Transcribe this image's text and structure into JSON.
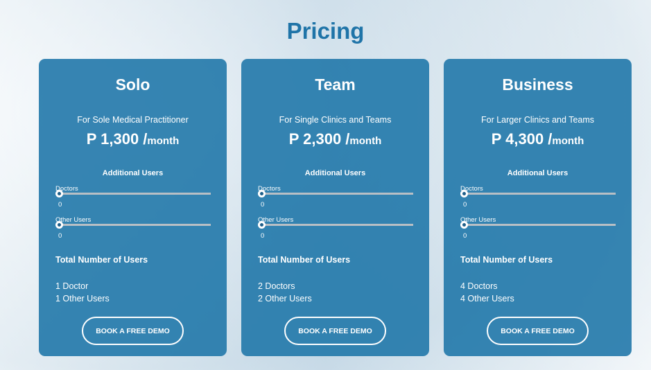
{
  "title": "Pricing",
  "plans": [
    {
      "name": "Solo",
      "subtitle": "For Sole Medical Practitioner",
      "price": "P 1,300 /",
      "period": "month",
      "additional": "Additional Users",
      "doctors_label": "Doctors",
      "doctors_value": "0",
      "others_label": "Other Users",
      "others_value": "0",
      "total_label": "Total Number of Users",
      "total_doctors": "1 Doctor",
      "total_others": "1 Other Users",
      "button": "Book a Free Demo"
    },
    {
      "name": "Team",
      "subtitle": "For Single Clinics and Teams",
      "price": "P 2,300 /",
      "period": "month",
      "additional": "Additional Users",
      "doctors_label": "Doctors",
      "doctors_value": "0",
      "others_label": "Other Users",
      "others_value": "0",
      "total_label": "Total Number of Users",
      "total_doctors": "2 Doctors",
      "total_others": "2 Other Users",
      "button": "Book a Free Demo"
    },
    {
      "name": "Business",
      "subtitle": "For Larger Clinics and Teams",
      "price": "P 4,300 /",
      "period": "month",
      "additional": "Additional Users",
      "doctors_label": "Doctors",
      "doctors_value": "0",
      "others_label": "Other Users",
      "others_value": "0",
      "total_label": "Total Number of Users",
      "total_doctors": "4 Doctors",
      "total_others": "4 Other Users",
      "button": "Book a Free Demo"
    }
  ],
  "colors": {
    "accent": "#1f74a8",
    "card": "#2178aa"
  }
}
